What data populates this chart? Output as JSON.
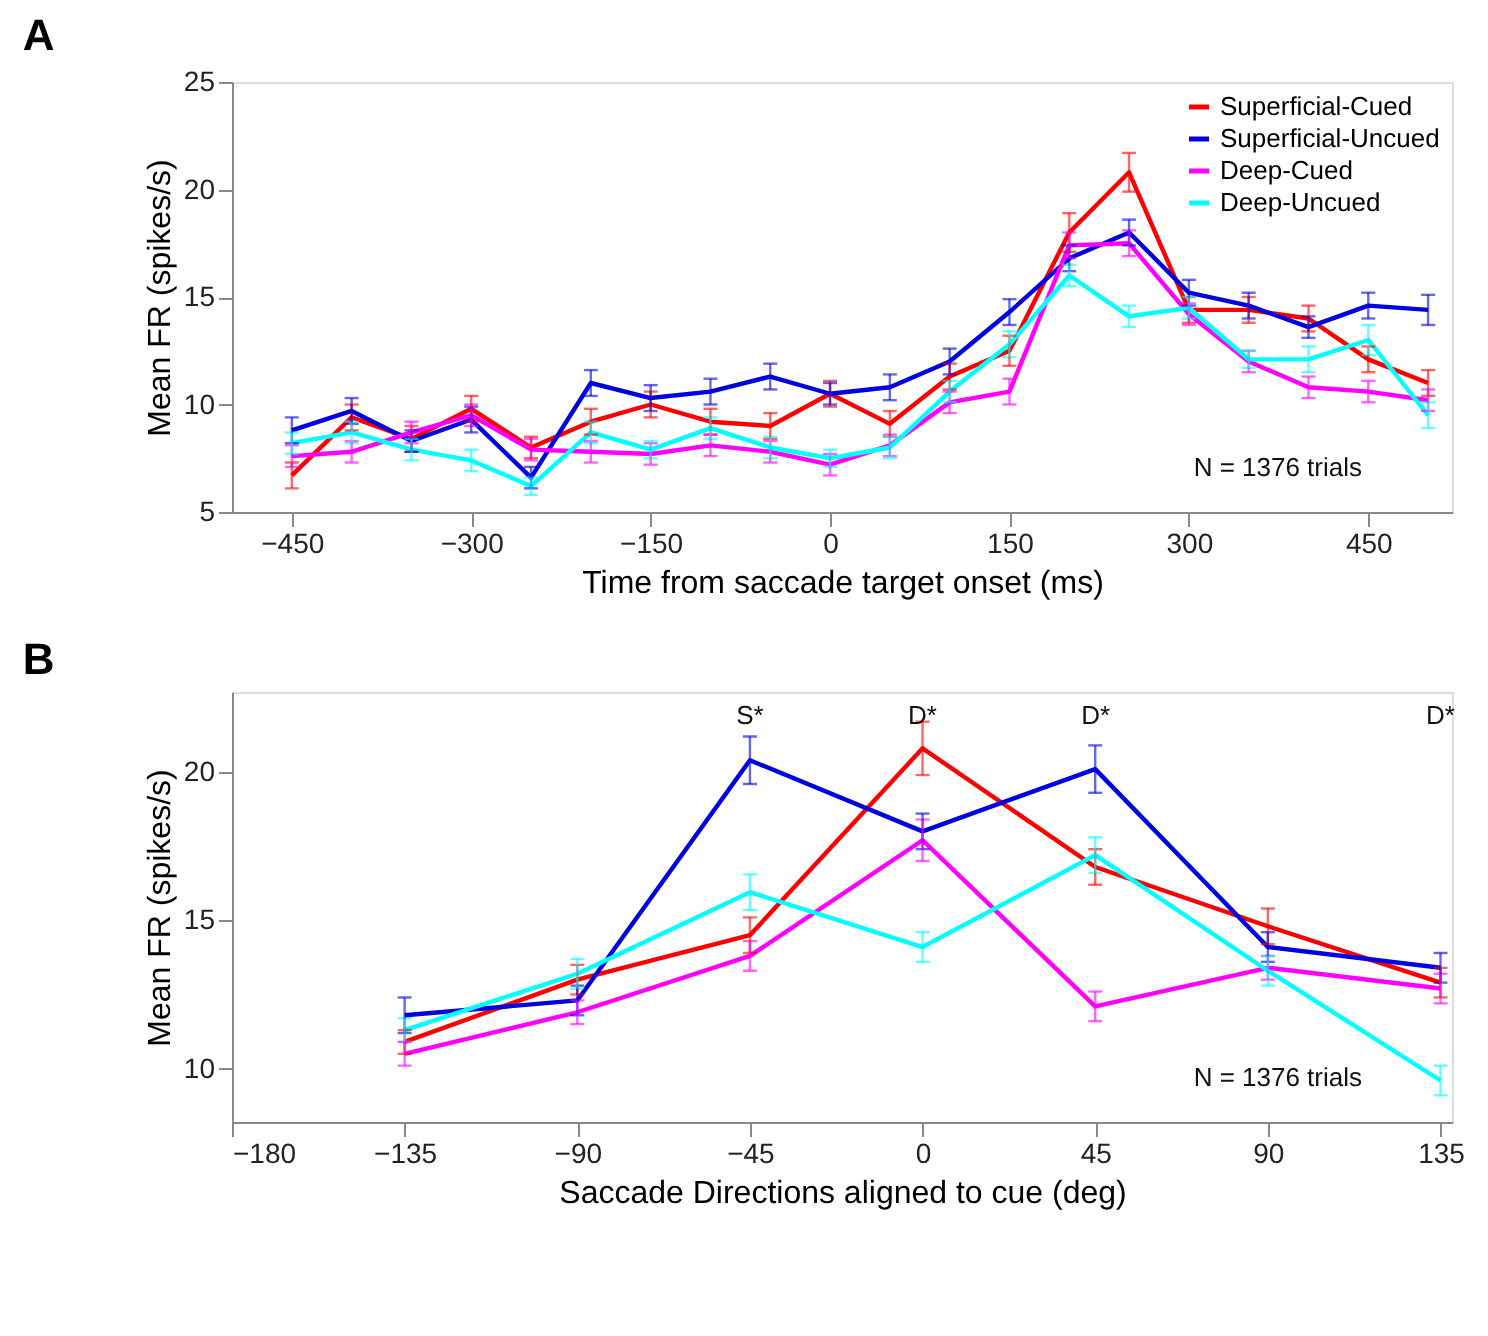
{
  "chart_data": [
    {
      "type": "line",
      "title": "A",
      "xlabel": "Time from saccade target onset (ms)",
      "ylabel": "Mean FR (spikes/s)",
      "x": [
        -450,
        -400,
        -350,
        -300,
        -250,
        -200,
        -150,
        -100,
        -50,
        0,
        50,
        100,
        150,
        200,
        250,
        300,
        350,
        400,
        450,
        500
      ],
      "series": [
        {
          "name": "Superficial-Cued",
          "color": "#ff0000",
          "values": [
            6.7,
            9.4,
            8.4,
            9.8,
            8.0,
            9.2,
            10.0,
            9.2,
            9.0,
            10.5,
            9.1,
            11.3,
            12.5,
            18.0,
            20.8,
            14.4,
            14.4,
            14.0,
            12.1,
            11.0
          ],
          "errors": [
            0.6,
            0.6,
            0.6,
            0.6,
            0.5,
            0.6,
            0.6,
            0.6,
            0.6,
            0.6,
            0.6,
            0.6,
            0.7,
            0.9,
            0.9,
            0.6,
            0.6,
            0.6,
            0.6,
            0.6
          ]
        },
        {
          "name": "Superficial-Uncued",
          "color": "#0000e0",
          "values": [
            8.8,
            9.7,
            8.3,
            9.3,
            6.6,
            11.0,
            10.3,
            10.6,
            11.3,
            10.5,
            10.8,
            12.0,
            14.3,
            16.8,
            18.0,
            15.2,
            14.6,
            13.6,
            14.6,
            14.4
          ],
          "errors": [
            0.6,
            0.6,
            0.5,
            0.6,
            0.5,
            0.6,
            0.6,
            0.6,
            0.6,
            0.5,
            0.6,
            0.6,
            0.6,
            0.6,
            0.6,
            0.6,
            0.6,
            0.5,
            0.6,
            0.7
          ]
        },
        {
          "name": "Deep-Cued",
          "color": "#ff00ff",
          "values": [
            7.6,
            7.8,
            8.7,
            9.5,
            7.9,
            7.8,
            7.7,
            8.1,
            7.8,
            7.2,
            8.1,
            10.1,
            10.6,
            17.4,
            17.5,
            14.2,
            12.0,
            10.8,
            10.6,
            10.2
          ],
          "errors": [
            0.5,
            0.5,
            0.5,
            0.5,
            0.5,
            0.5,
            0.5,
            0.5,
            0.5,
            0.5,
            0.5,
            0.5,
            0.6,
            0.6,
            0.6,
            0.5,
            0.5,
            0.5,
            0.5,
            0.5
          ]
        },
        {
          "name": "Deep-Uncued",
          "color": "#00ffff",
          "values": [
            8.2,
            8.7,
            7.9,
            7.4,
            6.2,
            8.7,
            7.9,
            8.9,
            8.0,
            7.5,
            8.0,
            10.6,
            12.8,
            16.0,
            14.1,
            14.5,
            12.1,
            12.1,
            13.0,
            9.5
          ],
          "errors": [
            0.5,
            0.5,
            0.5,
            0.5,
            0.4,
            0.5,
            0.4,
            0.5,
            0.5,
            0.4,
            0.5,
            0.5,
            0.6,
            0.5,
            0.5,
            0.5,
            0.4,
            0.6,
            0.7,
            0.6
          ]
        }
      ],
      "xlim": [
        -500,
        520
      ],
      "xticks": [
        -450,
        -300,
        -150,
        0,
        150,
        300,
        450
      ],
      "ylim": [
        5,
        25
      ],
      "yticks": [
        5,
        10,
        15,
        20,
        25
      ],
      "legend": "top right",
      "grid": false,
      "marker": "none",
      "line_style": "solid",
      "annotations": [
        "N = 1376 trials"
      ]
    },
    {
      "type": "line",
      "title": "B",
      "xlabel": "Saccade Directions aligned to cue (deg)",
      "ylabel": "Mean FR (spikes/s)",
      "x": [
        -135,
        -90,
        -45,
        0,
        45,
        90,
        135
      ],
      "series": [
        {
          "color": "#ff0000",
          "values": [
            10.9,
            13.0,
            14.5,
            20.8,
            16.8,
            14.8,
            12.9
          ],
          "errors": [
            0.4,
            0.5,
            0.6,
            0.9,
            0.6,
            0.6,
            0.5
          ]
        },
        {
          "color": "#0000e0",
          "values": [
            11.8,
            12.3,
            20.4,
            18.0,
            20.1,
            14.1,
            13.4
          ],
          "errors": [
            0.6,
            0.5,
            0.8,
            0.6,
            0.8,
            0.5,
            0.5
          ]
        },
        {
          "color": "#ff00ff",
          "values": [
            10.5,
            11.9,
            13.8,
            17.7,
            12.1,
            13.4,
            12.7
          ],
          "errors": [
            0.4,
            0.4,
            0.5,
            0.7,
            0.5,
            0.4,
            0.5
          ]
        },
        {
          "color": "#00ffff",
          "values": [
            11.3,
            13.2,
            15.95,
            14.1,
            17.2,
            13.3,
            9.6
          ],
          "errors": [
            0.4,
            0.5,
            0.6,
            0.5,
            0.6,
            0.5,
            0.5
          ]
        }
      ],
      "xlim": [
        -180,
        138
      ],
      "xticks": [
        -180,
        -135,
        -90,
        -45,
        0,
        45,
        90,
        135
      ],
      "ylim": [
        8.2,
        22.7
      ],
      "yticks": [
        10,
        15,
        20
      ],
      "legend": false,
      "grid": false,
      "marker": "none",
      "line_style": "solid",
      "annotations": [
        "S*",
        "D*",
        "D*",
        "D*",
        "N = 1376 trials"
      ]
    }
  ]
}
